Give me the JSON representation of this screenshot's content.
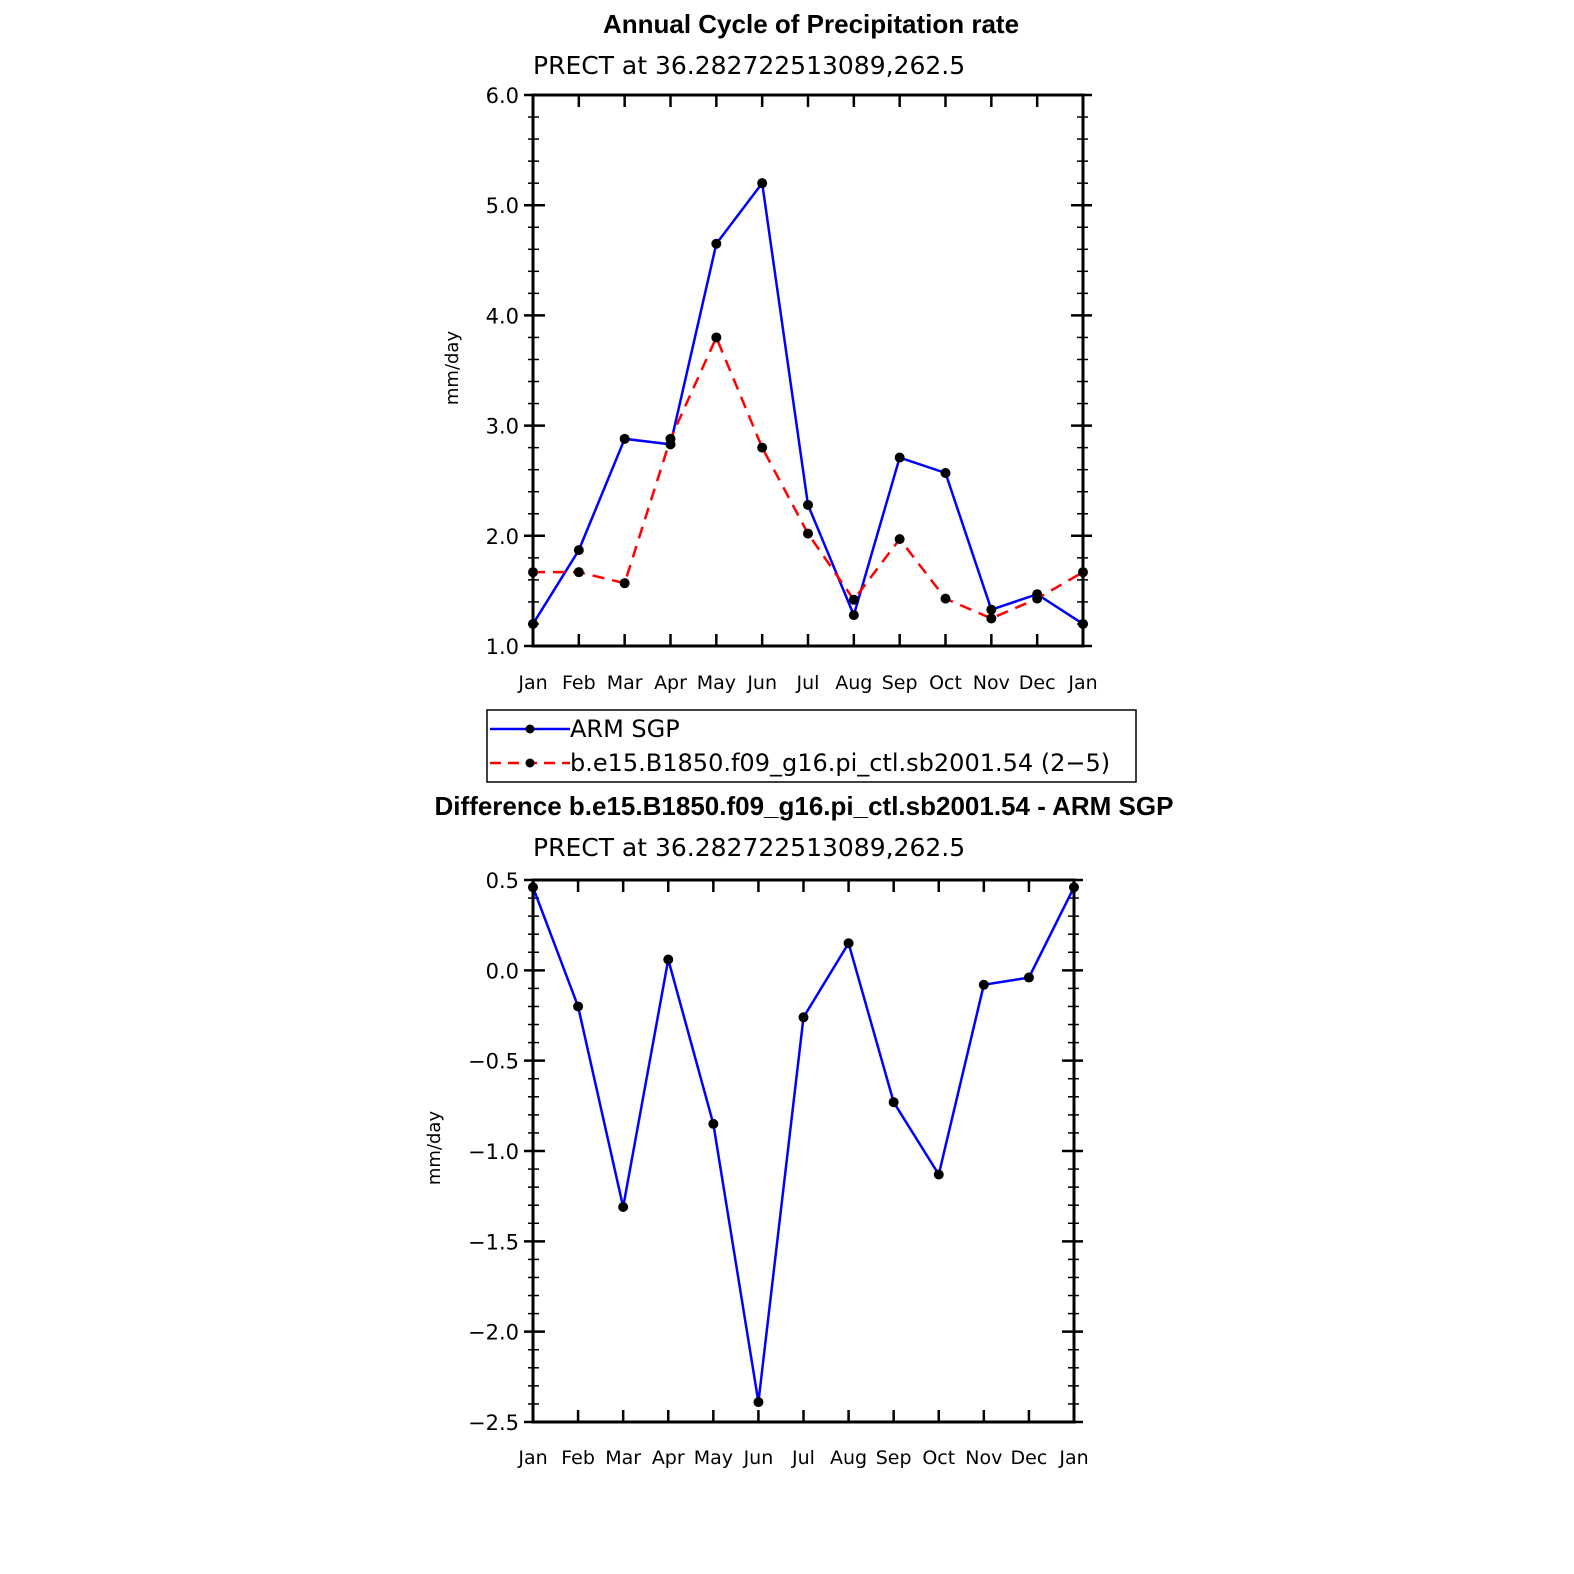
{
  "chart_data": [
    {
      "type": "line",
      "title": "Annual Cycle of Precipitation rate",
      "subtitle": "PRECT at 36.282722513089,262.5",
      "xlabel": "",
      "ylabel": "mm/day",
      "categories": [
        "Jan",
        "Feb",
        "Mar",
        "Apr",
        "May",
        "Jun",
        "Jul",
        "Aug",
        "Sep",
        "Oct",
        "Nov",
        "Dec",
        "Jan"
      ],
      "ylim": [
        1.0,
        6.0
      ],
      "yticks": [
        1.0,
        2.0,
        3.0,
        4.0,
        5.0,
        6.0
      ],
      "ytick_labels": [
        "1.0",
        "2.0",
        "3.0",
        "4.0",
        "5.0",
        "6.0"
      ],
      "grid": false,
      "series": [
        {
          "name": "ARM SGP",
          "color": "#0000ff",
          "dash": "solid",
          "values": [
            1.2,
            1.87,
            2.88,
            2.83,
            4.65,
            5.2,
            2.28,
            1.28,
            2.71,
            2.57,
            1.33,
            1.47,
            1.2
          ]
        },
        {
          "name": "b.e15.B1850.f09_g16.pi_ctl.sb2001.54 (2−5)",
          "color": "#ff0000",
          "dash": "dashed",
          "values": [
            1.67,
            1.67,
            1.57,
            2.88,
            3.8,
            2.8,
            2.02,
            1.42,
            1.97,
            1.43,
            1.25,
            1.43,
            1.67
          ]
        }
      ],
      "legend_position": "below"
    },
    {
      "type": "line",
      "title": "Difference b.e15.B1850.f09_g16.pi_ctl.sb2001.54 - ARM SGP",
      "subtitle": "PRECT at 36.282722513089,262.5",
      "xlabel": "",
      "ylabel": "mm/day",
      "categories": [
        "Jan",
        "Feb",
        "Mar",
        "Apr",
        "May",
        "Jun",
        "Jul",
        "Aug",
        "Sep",
        "Oct",
        "Nov",
        "Dec",
        "Jan"
      ],
      "ylim": [
        -2.5,
        0.5
      ],
      "yticks": [
        -2.5,
        -2.0,
        -1.5,
        -1.0,
        -0.5,
        0.0,
        0.5
      ],
      "ytick_labels": [
        "−2.5",
        "−2.0",
        "−1.5",
        "−1.0",
        "−0.5",
        "0.0",
        "0.5"
      ],
      "grid": false,
      "series": [
        {
          "color": "#0000ff",
          "dash": "solid",
          "values": [
            0.46,
            -0.2,
            -1.31,
            0.06,
            -0.85,
            -2.39,
            -0.26,
            0.15,
            -0.73,
            -1.13,
            -0.08,
            -0.04,
            0.46
          ]
        }
      ]
    }
  ]
}
